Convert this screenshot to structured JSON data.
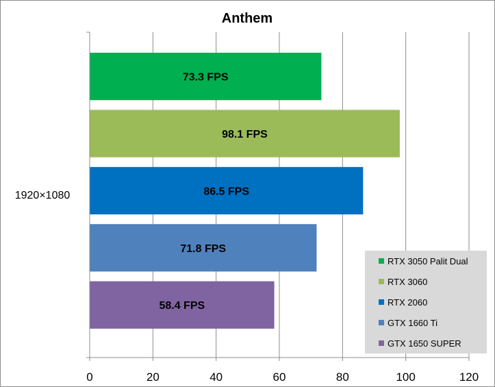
{
  "chart_data": {
    "type": "bar",
    "orientation": "horizontal",
    "title": "Anthem",
    "categories": [
      "1920×1080"
    ],
    "series": [
      {
        "name": "RTX 3050 Palit Dual",
        "values": [
          73.3
        ],
        "label": "73.3 FPS",
        "color": "#00b050"
      },
      {
        "name": "RTX 3060",
        "values": [
          98.1
        ],
        "label": "98.1 FPS",
        "color": "#9bbb59"
      },
      {
        "name": "RTX 2060",
        "values": [
          86.5
        ],
        "label": "86.5 FPS",
        "color": "#0070c0"
      },
      {
        "name": "GTX 1660 Ti",
        "values": [
          71.8
        ],
        "label": "71.8 FPS",
        "color": "#4f81bd"
      },
      {
        "name": "GTX 1650 SUPER",
        "values": [
          58.4
        ],
        "label": "58.4 FPS",
        "color": "#8064a2"
      }
    ],
    "xlim": [
      0,
      120
    ],
    "xticks": [
      "0",
      "20",
      "40",
      "60",
      "80",
      "100",
      "120"
    ],
    "xlabel": "",
    "ylabel": "",
    "grid": "vertical",
    "legend_position": "bottom-right",
    "legend_background": "#d9d9d9"
  }
}
